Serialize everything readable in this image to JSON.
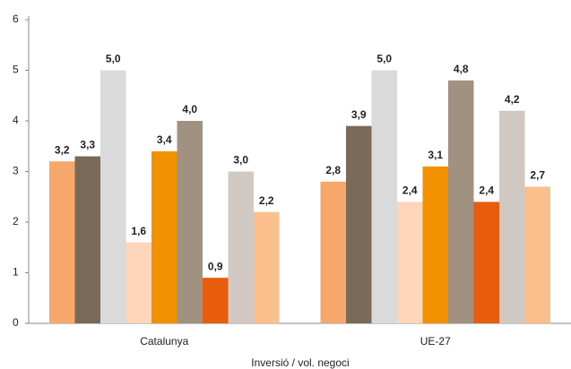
{
  "chart_data": {
    "type": "bar",
    "x_label": "Inversió / vol. negoci",
    "categories": [
      "Catalunya",
      "UE-27"
    ],
    "series": [
      {
        "color": "#f5a76c",
        "values": [
          3.2,
          2.8
        ],
        "value_labels": [
          "3,2",
          "2,8"
        ]
      },
      {
        "color": "#7a6957",
        "values": [
          3.3,
          3.9
        ],
        "value_labels": [
          "3,3",
          "3,9"
        ]
      },
      {
        "color": "#dadada",
        "values": [
          5.0,
          5.0
        ],
        "value_labels": [
          "5,0",
          "5,0"
        ]
      },
      {
        "color": "#fdd6ba",
        "values": [
          1.6,
          2.4
        ],
        "value_labels": [
          "1,6",
          "2,4"
        ]
      },
      {
        "color": "#f39200",
        "values": [
          3.4,
          3.1
        ],
        "value_labels": [
          "3,4",
          "3,1"
        ]
      },
      {
        "color": "#a09181",
        "values": [
          4.0,
          4.8
        ],
        "value_labels": [
          "4,0",
          "4,8"
        ]
      },
      {
        "color": "#e85c0e",
        "values": [
          0.9,
          2.4
        ],
        "value_labels": [
          "0,9",
          "2,4"
        ]
      },
      {
        "color": "#d0c9c3",
        "values": [
          3.0,
          4.2
        ],
        "value_labels": [
          "3,0",
          "4,2"
        ]
      },
      {
        "color": "#fbbf8e",
        "values": [
          2.2,
          2.7
        ],
        "value_labels": [
          "2,2",
          "2,7"
        ]
      }
    ],
    "ylim": [
      0,
      6
    ],
    "yticks": [
      0,
      1,
      2,
      3,
      4,
      5,
      6
    ],
    "grid": false
  }
}
